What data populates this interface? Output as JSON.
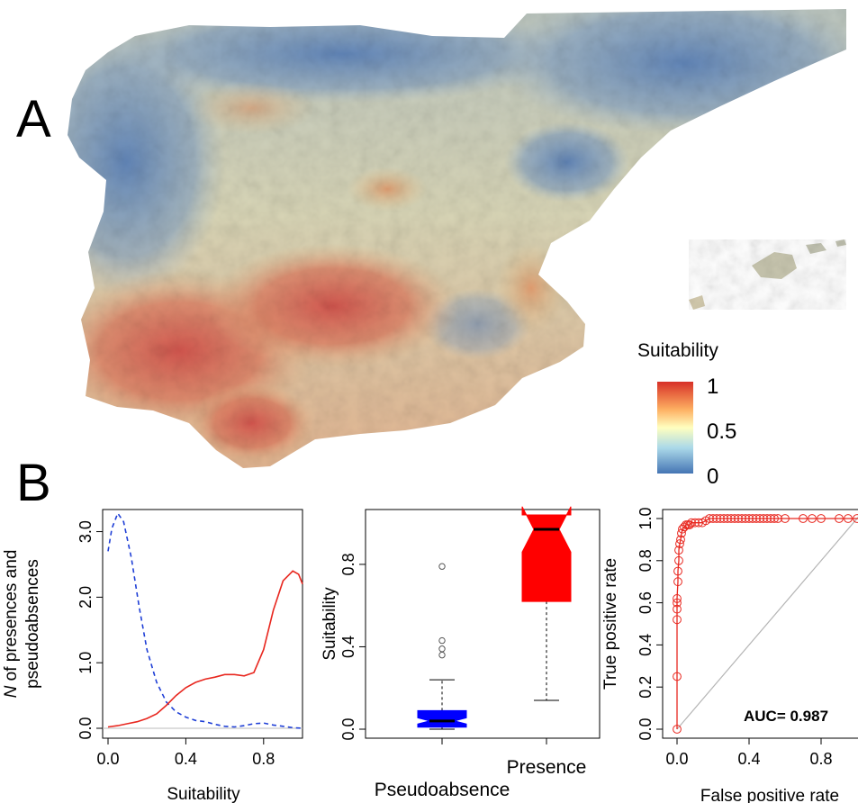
{
  "panel_labels": {
    "a": "A",
    "b": "B"
  },
  "legend": {
    "title": "Suitability",
    "tick_labels": [
      "1",
      "0.5",
      "0"
    ],
    "colors": [
      "#d73027",
      "#fdae61",
      "#ffffbf",
      "#abd9e9",
      "#4575b4"
    ]
  },
  "chart_data": [
    {
      "type": "line",
      "xlabel": "Suitability",
      "ylabel_line1_italic": "N",
      "ylabel_line1_rest": " of presences and",
      "ylabel_line2": "pseudoabsences",
      "xlim": [
        0,
        1
      ],
      "ylim": [
        0,
        3.3
      ],
      "x_ticks": [
        "0.0",
        "0.4",
        "0.8"
      ],
      "y_ticks": [
        "0.0",
        "1.0",
        "2.0",
        "3.0"
      ],
      "series": [
        {
          "style": "dashed",
          "color": "#1f3fd6",
          "x": [
            0,
            0.02,
            0.05,
            0.08,
            0.12,
            0.16,
            0.2,
            0.25,
            0.3,
            0.35,
            0.4,
            0.45,
            0.5,
            0.55,
            0.6,
            0.65,
            0.7,
            0.75,
            0.8,
            0.85,
            0.9,
            0.95,
            1.0
          ],
          "y": [
            2.7,
            3.05,
            3.28,
            3.15,
            2.6,
            1.85,
            1.2,
            0.7,
            0.4,
            0.25,
            0.17,
            0.12,
            0.1,
            0.06,
            0.03,
            0.02,
            0.04,
            0.07,
            0.08,
            0.05,
            0.03,
            0.01,
            0.0
          ]
        },
        {
          "style": "solid",
          "color": "#e8271f",
          "x": [
            0,
            0.05,
            0.1,
            0.15,
            0.2,
            0.25,
            0.3,
            0.35,
            0.4,
            0.45,
            0.5,
            0.55,
            0.6,
            0.65,
            0.7,
            0.75,
            0.8,
            0.85,
            0.9,
            0.95,
            0.98,
            1.0
          ],
          "y": [
            0.02,
            0.04,
            0.07,
            0.1,
            0.15,
            0.22,
            0.35,
            0.5,
            0.62,
            0.7,
            0.75,
            0.78,
            0.82,
            0.82,
            0.8,
            0.85,
            1.2,
            1.8,
            2.25,
            2.4,
            2.35,
            2.2
          ]
        }
      ]
    },
    {
      "type": "box",
      "ylabel": "Suitability",
      "ylim": [
        0,
        1.04
      ],
      "y_ticks": [
        "0.0",
        "0.4",
        "0.8"
      ],
      "categories": [
        "Pseudoabsence",
        "Presence"
      ],
      "boxes": [
        {
          "name": "Pseudoabsence",
          "color": "#0000ff",
          "whisker_low": 0.0,
          "q1": 0.01,
          "median": 0.04,
          "q3": 0.09,
          "whisker_high": 0.24,
          "notch_low": 0.025,
          "notch_high": 0.055,
          "outliers": [
            0.36,
            0.39,
            0.43,
            0.79
          ]
        },
        {
          "name": "Presence",
          "color": "#ff0000",
          "whisker_low": 0.14,
          "q1": 0.62,
          "median": 0.97,
          "q3": 1.04,
          "whisker_high": 1.04,
          "notch_low": 0.86,
          "notch_high": 1.08,
          "outliers": []
        }
      ]
    },
    {
      "type": "line",
      "xlabel": "False positive rate",
      "ylabel": "True positive rate",
      "xlim": [
        0,
        1
      ],
      "ylim": [
        0,
        1
      ],
      "x_ticks": [
        "0.0",
        "0.4",
        "0.8"
      ],
      "y_ticks": [
        "0.0",
        "0.2",
        "0.4",
        "0.6",
        "0.8",
        "1.0"
      ],
      "annotation": "AUC= 0.987",
      "series": [
        {
          "color": "#e8271f",
          "markers": "circle",
          "x": [
            0,
            0,
            0,
            0,
            0,
            0,
            0.005,
            0.005,
            0.01,
            0.01,
            0.015,
            0.02,
            0.025,
            0.03,
            0.04,
            0.05,
            0.06,
            0.07,
            0.08,
            0.1,
            0.12,
            0.14,
            0.16,
            0.18,
            0.2,
            0.22,
            0.24,
            0.26,
            0.28,
            0.3,
            0.32,
            0.34,
            0.36,
            0.38,
            0.4,
            0.42,
            0.44,
            0.46,
            0.48,
            0.5,
            0.52,
            0.54,
            0.56,
            0.6,
            0.7,
            0.75,
            0.8,
            0.9,
            0.95,
            1.0
          ],
          "y": [
            0,
            0.25,
            0.52,
            0.57,
            0.6,
            0.62,
            0.7,
            0.75,
            0.8,
            0.85,
            0.88,
            0.9,
            0.93,
            0.95,
            0.96,
            0.97,
            0.97,
            0.97,
            0.98,
            0.98,
            0.98,
            0.98,
            0.99,
            1.0,
            1.0,
            1.0,
            1.0,
            1.0,
            1.0,
            1.0,
            1.0,
            1.0,
            1.0,
            1.0,
            1.0,
            1.0,
            1.0,
            1.0,
            1.0,
            1.0,
            1.0,
            1.0,
            1.0,
            1.0,
            1.0,
            1.0,
            1.0,
            1.0,
            1.0,
            1.0
          ]
        }
      ]
    }
  ]
}
